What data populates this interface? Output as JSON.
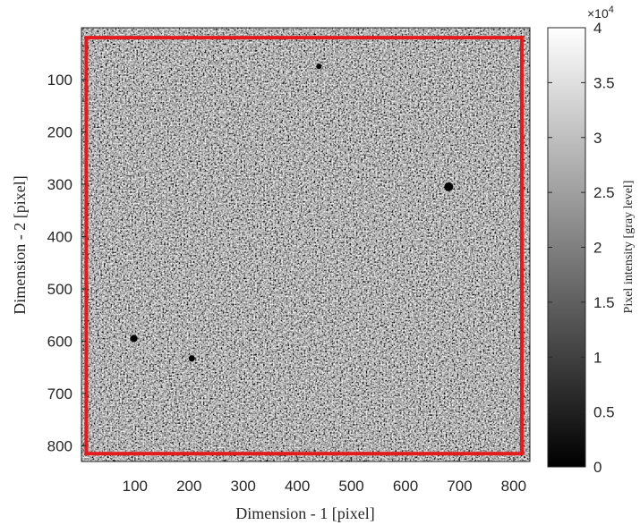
{
  "chart_data": {
    "type": "heatmap",
    "xlabel": "Dimension - 1 [pixel]",
    "ylabel": "Dimension - 2 [pixel]",
    "xlim": [
      1,
      830
    ],
    "ylim": [
      1,
      830
    ],
    "y_reversed": true,
    "x_ticks": [
      "100",
      "200",
      "300",
      "400",
      "500",
      "600",
      "700",
      "800"
    ],
    "y_ticks": [
      "100",
      "200",
      "300",
      "400",
      "500",
      "600",
      "700",
      "800"
    ],
    "x_tick_values": [
      100,
      200,
      300,
      400,
      500,
      600,
      700,
      800
    ],
    "y_tick_values": [
      100,
      200,
      300,
      400,
      500,
      600,
      700,
      800
    ],
    "roi_rectangle": {
      "x": [
        10,
        815
      ],
      "y": [
        20,
        815
      ],
      "color": "#e41a1c"
    },
    "colorbar": {
      "label": "Pixel intensity [gray level]",
      "multiplier": "×10",
      "multiplier_exponent": "4",
      "range": [
        0,
        4
      ],
      "colormap": "gray",
      "ticks": [
        "0",
        "0.5",
        "1",
        "1.5",
        "2",
        "2.5",
        "3",
        "3.5",
        "4"
      ],
      "tick_values": [
        0,
        0.5,
        1,
        1.5,
        2,
        2.5,
        3,
        3.5,
        4
      ]
    },
    "grid": false
  }
}
